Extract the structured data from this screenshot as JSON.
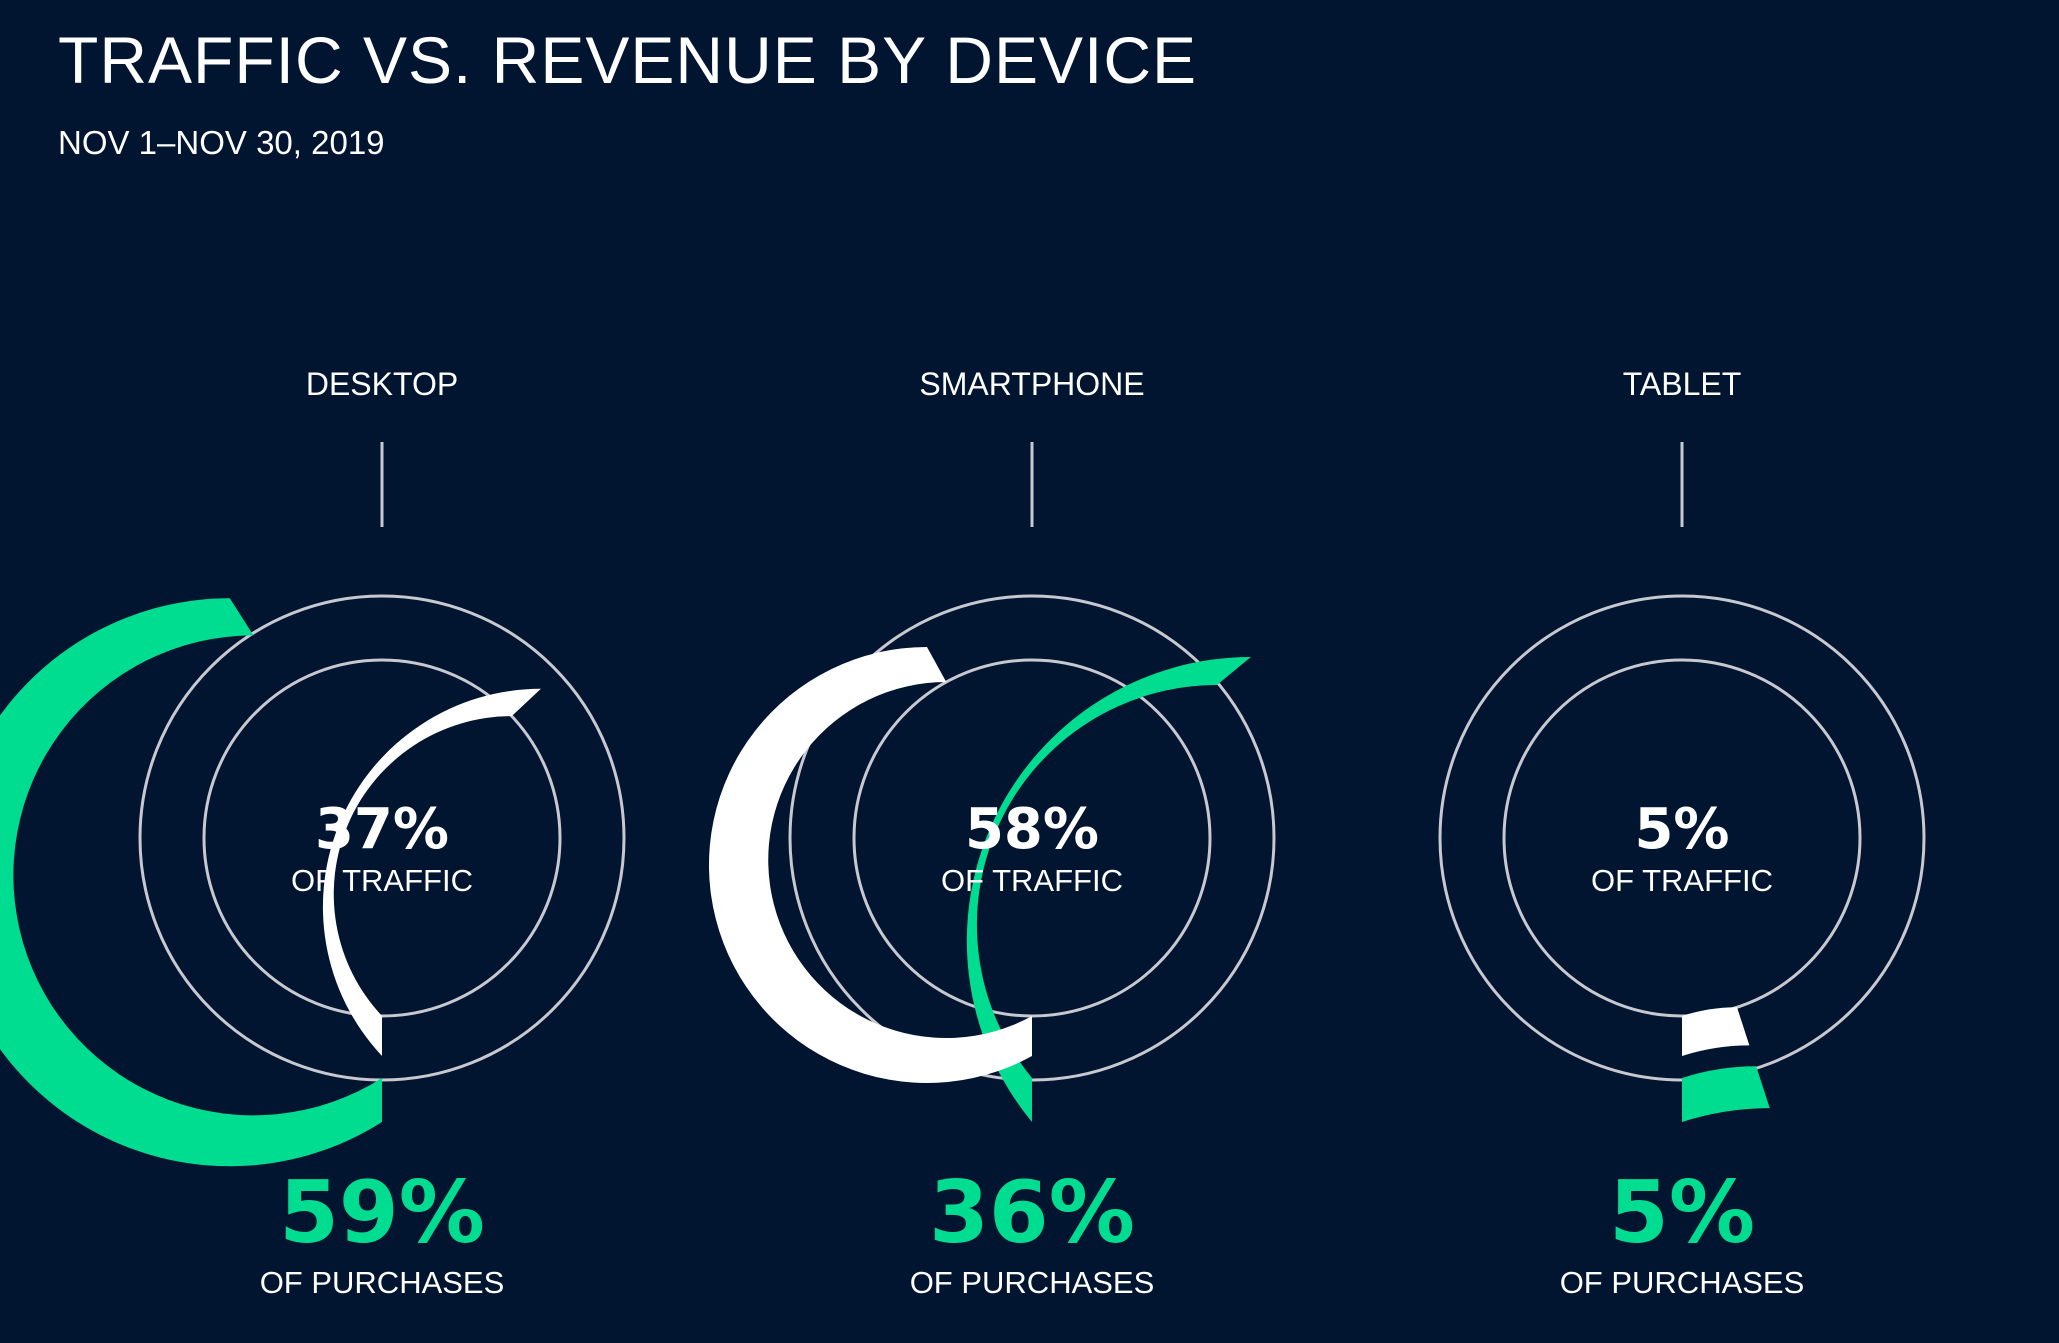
{
  "header": {
    "title": "TRAFFIC VS. REVENUE BY DEVICE",
    "subtitle": "NOV 1–NOV 30, 2019"
  },
  "colors": {
    "background": "#011530",
    "traffic": "#ffffff",
    "purchases": "#00dd91",
    "track": "#c8c8d0"
  },
  "chart_data": {
    "type": "radial-bar",
    "title": "TRAFFIC VS. REVENUE BY DEVICE",
    "subtitle": "NOV 1–NOV 30, 2019",
    "traffic_caption": "OF TRAFFIC",
    "purchases_caption": "OF PURCHASES",
    "categories": [
      "DESKTOP",
      "SMARTPHONE",
      "TABLET"
    ],
    "series": [
      {
        "name": "OF TRAFFIC",
        "values": [
          37,
          58,
          5
        ],
        "labels": [
          "37%",
          "58%",
          "5%"
        ]
      },
      {
        "name": "OF PURCHASES",
        "values": [
          59,
          36,
          5
        ],
        "labels": [
          "59%",
          "36%",
          "5%"
        ]
      }
    ]
  }
}
